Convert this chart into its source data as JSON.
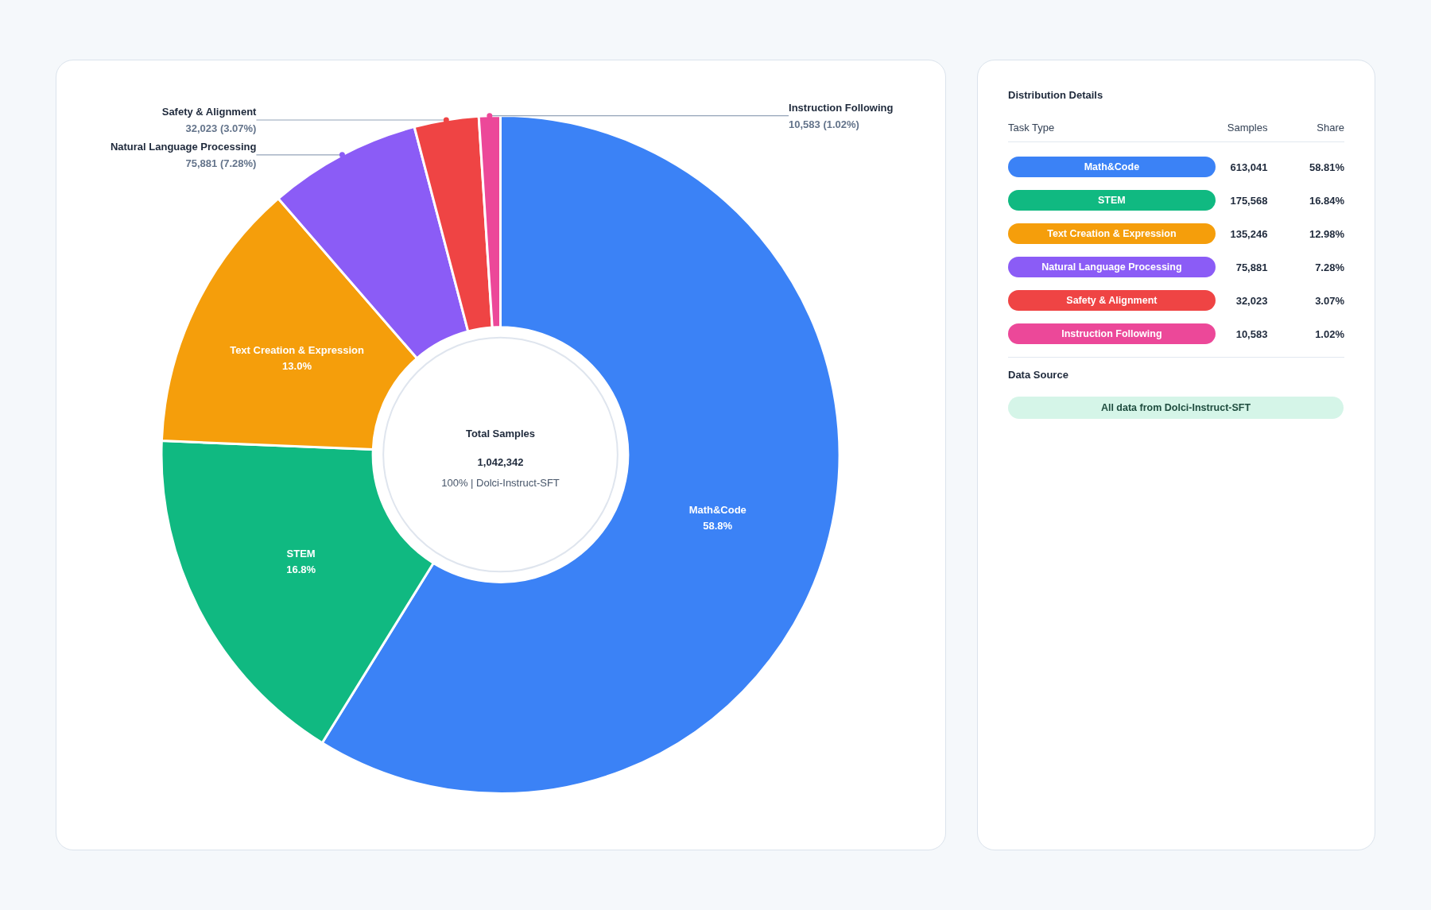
{
  "chart_data": [
    {
      "type": "donut",
      "categories": [
        "Math&Code",
        "STEM",
        "Text Creation & Expression",
        "Natural Language Processing",
        "Safety & Alignment",
        "Instruction Following"
      ],
      "values": [
        58.81,
        16.84,
        12.98,
        7.28,
        3.07,
        1.02
      ],
      "colors": [
        "#3b82f6",
        "#10b981",
        "#f59e0b",
        "#8b5cf6",
        "#ef4444",
        "#ec4899"
      ],
      "value_labels": [
        "58.8%",
        "16.8%",
        "13.0%",
        "75,881 (7.28%)",
        "32,023 (3.07%)",
        "10,583 (1.02%)"
      ],
      "annotations": [
        "Total Samples",
        "1,042,342",
        "100% | Dolci-Instruct-SFT"
      ]
    },
    {
      "type": "other",
      "title": "Distribution Details",
      "categories": [
        "Math&Code",
        "STEM",
        "Text Creation & Expression",
        "Natural Language Processing",
        "Safety & Alignment",
        "Instruction Following"
      ],
      "colors": [
        "#3b82f6",
        "#10b981",
        "#f59e0b",
        "#8b5cf6",
        "#ef4444",
        "#ec4899"
      ],
      "value_labels": [
        "613,041",
        "175,568",
        "135,246",
        "75,881",
        "32,023",
        "10,583"
      ],
      "annotations": [
        "Task Type",
        "Samples",
        "Share",
        "58.81%",
        "16.84%",
        "12.98%",
        "7.28%",
        "3.07%",
        "1.02%",
        "Data Source",
        "All data from Dolci-Instruct-SFT"
      ]
    }
  ]
}
